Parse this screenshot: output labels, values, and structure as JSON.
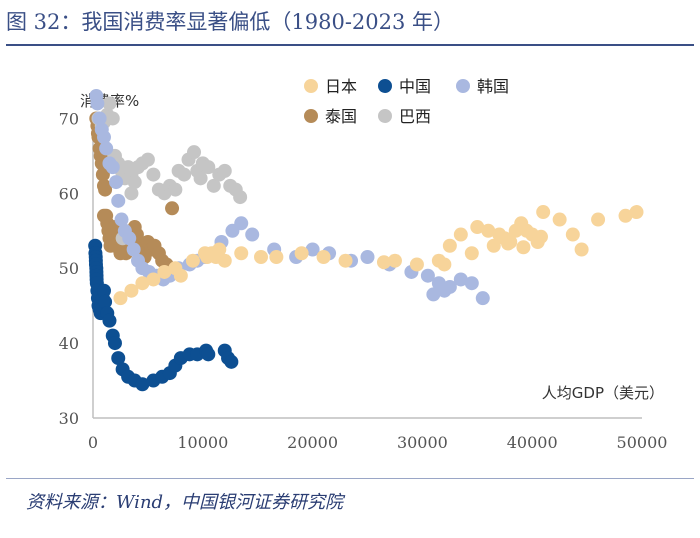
{
  "figure": {
    "title": "图 32：我国消费率显著偏低（1980-2023 年）",
    "source": "资料来源：Wind，中国银河证券研究院"
  },
  "chart_data": {
    "type": "scatter",
    "ylabel": "消费率%",
    "xlabel": "人均GDP（美元）",
    "xlim": [
      0,
      50000
    ],
    "ylim": [
      30,
      75
    ],
    "xticks": [
      "0",
      "10000",
      "20000",
      "30000",
      "40000",
      "50000"
    ],
    "yticks": [
      "30",
      "40",
      "50",
      "60",
      "70"
    ],
    "legend_position": "top-center",
    "series": [
      {
        "name": "日本",
        "color": "#f7d49a",
        "points": [
          [
            9100,
            51
          ],
          [
            10400,
            51.5
          ],
          [
            10200,
            52
          ],
          [
            10800,
            52
          ],
          [
            11500,
            52.5
          ],
          [
            11200,
            51.5
          ],
          [
            12000,
            51
          ],
          [
            13500,
            52
          ],
          [
            15300,
            51.5
          ],
          [
            16700,
            51.5
          ],
          [
            19000,
            52
          ],
          [
            21000,
            51.5
          ],
          [
            23000,
            51
          ],
          [
            26500,
            50.8
          ],
          [
            27500,
            51
          ],
          [
            29500,
            50.5
          ],
          [
            31500,
            51
          ],
          [
            32500,
            53
          ],
          [
            33500,
            54.5
          ],
          [
            35000,
            55.5
          ],
          [
            36000,
            55
          ],
          [
            37000,
            54.5
          ],
          [
            37500,
            54
          ],
          [
            38000,
            53.5
          ],
          [
            38500,
            55
          ],
          [
            39000,
            56
          ],
          [
            39500,
            55
          ],
          [
            40000,
            54.5
          ],
          [
            40500,
            53.5
          ],
          [
            41000,
            57.5
          ],
          [
            42500,
            56.5
          ],
          [
            43700,
            54.5
          ],
          [
            44500,
            52.5
          ],
          [
            46000,
            56.5
          ],
          [
            48500,
            57
          ],
          [
            49500,
            57.5
          ],
          [
            32000,
            50.5
          ],
          [
            34500,
            52
          ],
          [
            36500,
            53
          ],
          [
            37800,
            53.3
          ],
          [
            39200,
            52.8
          ],
          [
            40800,
            54.2
          ],
          [
            2500,
            46
          ],
          [
            3500,
            47
          ],
          [
            4500,
            48
          ],
          [
            5500,
            48.5
          ],
          [
            6500,
            49.5
          ],
          [
            7500,
            50
          ],
          [
            8000,
            49
          ]
        ]
      },
      {
        "name": "中国",
        "color": "#0d4f92",
        "points": [
          [
            200,
            53
          ],
          [
            220,
            52
          ],
          [
            250,
            51.5
          ],
          [
            260,
            51
          ],
          [
            270,
            50.5
          ],
          [
            300,
            50
          ],
          [
            310,
            49.5
          ],
          [
            320,
            49
          ],
          [
            330,
            48.5
          ],
          [
            350,
            48
          ],
          [
            400,
            47
          ],
          [
            450,
            46
          ],
          [
            500,
            45
          ],
          [
            600,
            44.5
          ],
          [
            700,
            44
          ],
          [
            800,
            44.5
          ],
          [
            900,
            46
          ],
          [
            1000,
            47
          ],
          [
            1100,
            45.5
          ],
          [
            1300,
            44
          ],
          [
            1500,
            43
          ],
          [
            1800,
            41
          ],
          [
            2000,
            40
          ],
          [
            2300,
            38
          ],
          [
            2700,
            36.5
          ],
          [
            3200,
            35.5
          ],
          [
            3800,
            35
          ],
          [
            4500,
            34.5
          ],
          [
            5500,
            35
          ],
          [
            6300,
            35.5
          ],
          [
            7000,
            36
          ],
          [
            7500,
            37
          ],
          [
            8000,
            38
          ],
          [
            8800,
            38.5
          ],
          [
            9500,
            38.5
          ],
          [
            10300,
            39
          ],
          [
            10500,
            38.5
          ],
          [
            12000,
            39
          ],
          [
            12300,
            38
          ],
          [
            12600,
            37.5
          ]
        ]
      },
      {
        "name": "韩国",
        "color": "#a9b8e0",
        "points": [
          [
            300,
            73
          ],
          [
            400,
            72
          ],
          [
            600,
            70
          ],
          [
            800,
            68.5
          ],
          [
            1000,
            67.5
          ],
          [
            1200,
            66
          ],
          [
            1500,
            64
          ],
          [
            1800,
            63.5
          ],
          [
            2100,
            61.5
          ],
          [
            2300,
            59
          ],
          [
            2600,
            56.5
          ],
          [
            2900,
            55
          ],
          [
            3300,
            54
          ],
          [
            3700,
            52.5
          ],
          [
            4100,
            51
          ],
          [
            4500,
            50
          ],
          [
            5100,
            49.5
          ],
          [
            5800,
            49
          ],
          [
            6400,
            48.5
          ],
          [
            7000,
            49
          ],
          [
            7800,
            50
          ],
          [
            8800,
            50.5
          ],
          [
            9500,
            51
          ],
          [
            10200,
            51.5
          ],
          [
            11000,
            52
          ],
          [
            11700,
            53.5
          ],
          [
            12700,
            55
          ],
          [
            13500,
            56
          ],
          [
            14500,
            54.5
          ],
          [
            16500,
            52.5
          ],
          [
            18500,
            51.5
          ],
          [
            20000,
            52.5
          ],
          [
            21500,
            52
          ],
          [
            23500,
            51
          ],
          [
            25000,
            51.5
          ],
          [
            27000,
            50.5
          ],
          [
            29000,
            49.5
          ],
          [
            30500,
            49
          ],
          [
            31500,
            48
          ],
          [
            32500,
            47.5
          ],
          [
            33500,
            48.5
          ],
          [
            34500,
            48
          ],
          [
            35500,
            46
          ],
          [
            31000,
            46.5
          ],
          [
            32000,
            47
          ]
        ]
      },
      {
        "name": "泰国",
        "color": "#b58b58",
        "points": [
          [
            300,
            70
          ],
          [
            400,
            69
          ],
          [
            450,
            68
          ],
          [
            500,
            67.5
          ],
          [
            600,
            66
          ],
          [
            700,
            65
          ],
          [
            800,
            64
          ],
          [
            900,
            62.5
          ],
          [
            1000,
            61
          ],
          [
            1100,
            60.5
          ],
          [
            1200,
            57
          ],
          [
            1300,
            56
          ],
          [
            1400,
            55
          ],
          [
            1500,
            54
          ],
          [
            1600,
            53
          ],
          [
            1800,
            54.5
          ],
          [
            2000,
            55.5
          ],
          [
            2200,
            55
          ],
          [
            2500,
            54
          ],
          [
            2700,
            53
          ],
          [
            3000,
            52
          ],
          [
            3200,
            53.5
          ],
          [
            3500,
            55
          ],
          [
            3800,
            55.5
          ],
          [
            4000,
            54.5
          ],
          [
            4200,
            53.5
          ],
          [
            4500,
            52.5
          ],
          [
            4700,
            51.5
          ],
          [
            5000,
            53.5
          ],
          [
            5300,
            52.5
          ],
          [
            5600,
            53
          ],
          [
            6000,
            52
          ],
          [
            6300,
            51
          ],
          [
            6700,
            50.5
          ],
          [
            7000,
            50
          ],
          [
            7200,
            58
          ],
          [
            1000,
            57
          ],
          [
            2500,
            52
          ],
          [
            2000,
            53
          ]
        ]
      },
      {
        "name": "巴西",
        "color": "#c5c5c5",
        "points": [
          [
            500,
            70
          ],
          [
            800,
            69
          ],
          [
            1000,
            69.5
          ],
          [
            1300,
            70.5
          ],
          [
            1500,
            72
          ],
          [
            1800,
            70
          ],
          [
            2000,
            65
          ],
          [
            2300,
            64
          ],
          [
            2600,
            63
          ],
          [
            2900,
            62
          ],
          [
            3200,
            63.5
          ],
          [
            3500,
            62.5
          ],
          [
            3800,
            61.5
          ],
          [
            4100,
            63.5
          ],
          [
            4500,
            64
          ],
          [
            5000,
            64.5
          ],
          [
            5500,
            62.5
          ],
          [
            6000,
            60.5
          ],
          [
            6500,
            60
          ],
          [
            7000,
            61
          ],
          [
            7500,
            60.5
          ],
          [
            7800,
            63
          ],
          [
            8300,
            62.5
          ],
          [
            8700,
            64.5
          ],
          [
            9200,
            65.5
          ],
          [
            9500,
            63
          ],
          [
            10000,
            64
          ],
          [
            10500,
            63.5
          ],
          [
            11000,
            61
          ],
          [
            11500,
            62.5
          ],
          [
            12000,
            63
          ],
          [
            12500,
            61
          ],
          [
            13000,
            60.5
          ],
          [
            13400,
            59.5
          ],
          [
            2700,
            54
          ],
          [
            3500,
            60
          ],
          [
            9800,
            62
          ]
        ]
      }
    ]
  }
}
